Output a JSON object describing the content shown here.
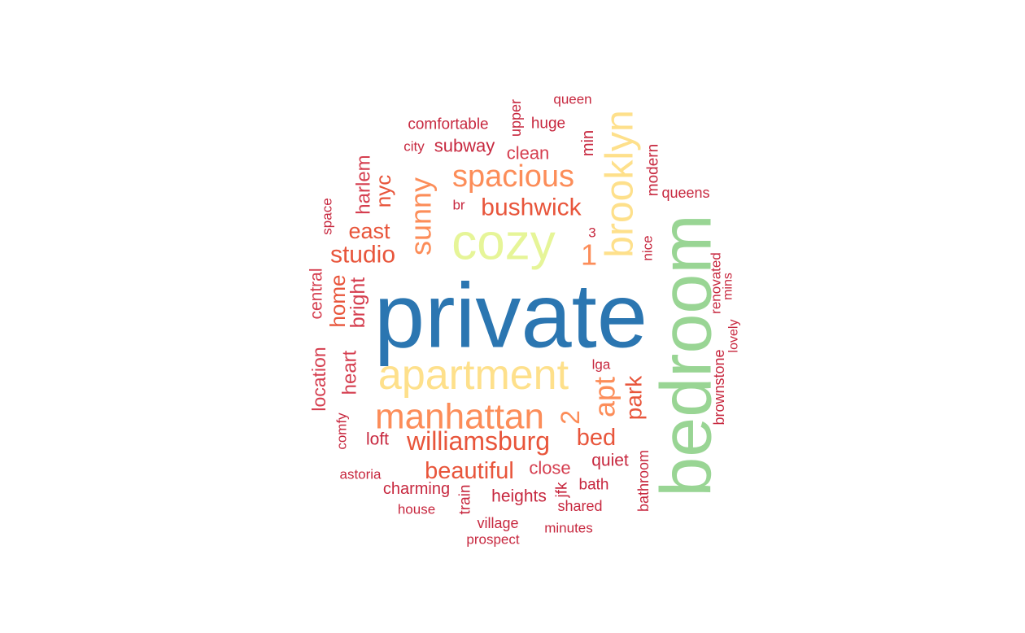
{
  "palette": {
    "blue": "#2b76b1",
    "green": "#99d594",
    "lightgreen": "#e6f598",
    "yellow": "#fee08b",
    "orange": "#fc8d59",
    "redorange": "#e8553b",
    "red": "#d53e4f",
    "crimson": "#c7283f"
  },
  "words": [
    {
      "text": "private",
      "color": "blue"
    },
    {
      "text": "bedroom",
      "color": "green"
    },
    {
      "text": "cozy",
      "color": "lightgreen"
    },
    {
      "text": "apartment",
      "color": "yellow"
    },
    {
      "text": "brooklyn",
      "color": "yellow"
    },
    {
      "text": "manhattan",
      "color": "orange"
    },
    {
      "text": "spacious",
      "color": "orange"
    },
    {
      "text": "sunny",
      "color": "orange"
    },
    {
      "text": "apt",
      "color": "orange"
    },
    {
      "text": "1",
      "color": "orange"
    },
    {
      "text": "2",
      "color": "orange"
    },
    {
      "text": "williamsburg",
      "color": "redorange"
    },
    {
      "text": "bushwick",
      "color": "redorange"
    },
    {
      "text": "beautiful",
      "color": "redorange"
    },
    {
      "text": "studio",
      "color": "redorange"
    },
    {
      "text": "bed",
      "color": "redorange"
    },
    {
      "text": "park",
      "color": "redorange"
    },
    {
      "text": "east",
      "color": "redorange"
    },
    {
      "text": "nyc",
      "color": "redorange"
    },
    {
      "text": "home",
      "color": "redorange"
    },
    {
      "text": "bright",
      "color": "red"
    },
    {
      "text": "heart",
      "color": "red"
    },
    {
      "text": "harlem",
      "color": "red"
    },
    {
      "text": "location",
      "color": "red"
    },
    {
      "text": "central",
      "color": "red"
    },
    {
      "text": "clean",
      "color": "red"
    },
    {
      "text": "close",
      "color": "red"
    },
    {
      "text": "subway",
      "color": "crimson"
    },
    {
      "text": "quiet",
      "color": "crimson"
    },
    {
      "text": "loft",
      "color": "crimson"
    },
    {
      "text": "heights",
      "color": "crimson"
    },
    {
      "text": "charming",
      "color": "crimson"
    },
    {
      "text": "huge",
      "color": "crimson"
    },
    {
      "text": "comfortable",
      "color": "crimson"
    },
    {
      "text": "upper",
      "color": "crimson"
    },
    {
      "text": "min",
      "color": "crimson"
    },
    {
      "text": "modern",
      "color": "crimson"
    },
    {
      "text": "queens",
      "color": "crimson"
    },
    {
      "text": "queen",
      "color": "crimson"
    },
    {
      "text": "city",
      "color": "crimson"
    },
    {
      "text": "br",
      "color": "crimson"
    },
    {
      "text": "3",
      "color": "crimson"
    },
    {
      "text": "space",
      "color": "crimson"
    },
    {
      "text": "nice",
      "color": "crimson"
    },
    {
      "text": "renovated",
      "color": "crimson"
    },
    {
      "text": "mins",
      "color": "crimson"
    },
    {
      "text": "lovely",
      "color": "crimson"
    },
    {
      "text": "brownstone",
      "color": "crimson"
    },
    {
      "text": "lga",
      "color": "crimson"
    },
    {
      "text": "comfy",
      "color": "crimson"
    },
    {
      "text": "jfk",
      "color": "crimson"
    },
    {
      "text": "bath",
      "color": "crimson"
    },
    {
      "text": "train",
      "color": "crimson"
    },
    {
      "text": "bathroom",
      "color": "crimson"
    },
    {
      "text": "astoria",
      "color": "crimson"
    },
    {
      "text": "shared",
      "color": "crimson"
    },
    {
      "text": "house",
      "color": "crimson"
    },
    {
      "text": "village",
      "color": "crimson"
    },
    {
      "text": "minutes",
      "color": "crimson"
    },
    {
      "text": "prospect",
      "color": "crimson"
    }
  ]
}
